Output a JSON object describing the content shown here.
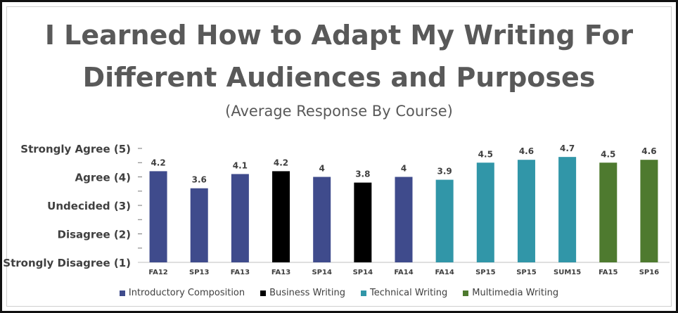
{
  "colors": {
    "title": "#595959",
    "introductory": "#3f4b8c",
    "business": "#000000",
    "technical": "#3196a8",
    "multimedia": "#4e7a2f"
  },
  "chart_data": {
    "type": "bar",
    "title_line1": "I Learned How to Adapt My Writing For",
    "title_line2": "Different Audiences and Purposes",
    "subtitle": "(Average Response By Course)",
    "ylim": [
      1,
      5
    ],
    "y_ticks": [
      {
        "value": 5,
        "label": "Strongly Agree (5)"
      },
      {
        "value": 4,
        "label": "Agree (4)"
      },
      {
        "value": 3,
        "label": "Undecided (3)"
      },
      {
        "value": 2,
        "label": "Disagree (2)"
      },
      {
        "value": 1,
        "label": "Strongly Disagree  (1)"
      }
    ],
    "grid": false,
    "legend_position": "bottom",
    "categories": [
      "FA12",
      "SP13",
      "FA13",
      "FA13",
      "SP14",
      "SP14",
      "FA14",
      "FA14",
      "SP15",
      "SP15",
      "SUM15",
      "FA15",
      "SP16"
    ],
    "values": [
      4.2,
      3.6,
      4.1,
      4.2,
      4,
      3.8,
      4,
      3.9,
      4.5,
      4.6,
      4.7,
      4.5,
      4.6
    ],
    "value_labels": [
      "4.2",
      "3.6",
      "4.1",
      "4.2",
      "4",
      "3.8",
      "4",
      "3.9",
      "4.5",
      "4.6",
      "4.7",
      "4.5",
      "4.6"
    ],
    "bar_groups": [
      "introductory",
      "introductory",
      "introductory",
      "business",
      "introductory",
      "business",
      "introductory",
      "technical",
      "technical",
      "technical",
      "technical",
      "multimedia",
      "multimedia"
    ],
    "legend": [
      {
        "key": "introductory",
        "label": "Introductory Composition"
      },
      {
        "key": "business",
        "label": "Business Writing"
      },
      {
        "key": "technical",
        "label": "Technical Writing"
      },
      {
        "key": "multimedia",
        "label": "Multimedia Writing"
      }
    ]
  }
}
